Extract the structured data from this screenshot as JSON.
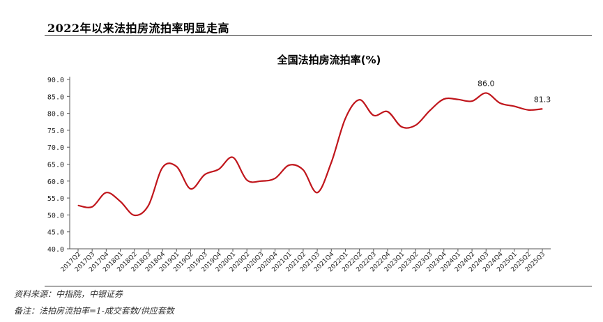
{
  "header": {
    "title": "2022年以来法拍房流拍率明显走高"
  },
  "footer": {
    "source": "资料来源：中指院，中银证券",
    "note": "备注：法拍房流拍率=1-成交套数/供应套数"
  },
  "chart_data": {
    "type": "line",
    "title": "全国法拍房流拍率(%)",
    "xlabel": "",
    "ylabel": "",
    "ylim": [
      40,
      90
    ],
    "yticks": [
      "40.0",
      "45.0",
      "50.0",
      "55.0",
      "60.0",
      "65.0",
      "70.0",
      "75.0",
      "80.0",
      "85.0",
      "90.0"
    ],
    "line_color": "#c0161c",
    "categories": [
      "2017Q2",
      "2017Q3",
      "2017Q4",
      "2018Q1",
      "2018Q2",
      "2018Q3",
      "2018Q4",
      "2019Q1",
      "2019Q2",
      "2019Q3",
      "2019Q4",
      "2020Q1",
      "2020Q2",
      "2020Q3",
      "2020Q4",
      "2021Q1",
      "2021Q2",
      "2021Q3",
      "2021Q4",
      "2022Q1",
      "2022Q2",
      "2022Q3",
      "2022Q4",
      "2023Q1",
      "2023Q2",
      "2023Q3",
      "2023Q4",
      "2024Q1",
      "2024Q2",
      "2024Q3",
      "2024Q4",
      "2025Q1",
      "2025Q2",
      "2025Q3"
    ],
    "x_tick_labels": [
      "2017Q2",
      "2017Q3",
      "2017Q4",
      "2018Q1",
      "2018Q2",
      "2018Q3",
      "2018Q4",
      "2019Q1",
      "2019Q2",
      "2019Q3",
      "2019Q4",
      "2020Q1",
      "2020Q2",
      "2020Q3",
      "2020Q4",
      "2021Q1",
      "2021Q2",
      "2021Q3",
      "2021Q4",
      "2022Q1",
      "2022Q2",
      "2022Q3",
      "2022Q4",
      "2023Q1",
      "2023Q2",
      "2023Q3",
      "2023Q4",
      "2024Q1",
      "2024Q2",
      "2024Q3",
      "2024Q4",
      "2025Q1",
      "2025Q2",
      "2025Q3"
    ],
    "values": [
      52.8,
      52.4,
      56.6,
      54.0,
      49.9,
      52.8,
      64.0,
      64.3,
      57.7,
      61.9,
      63.5,
      67.0,
      60.3,
      60.0,
      60.8,
      64.7,
      63.3,
      56.6,
      65.5,
      78.5,
      84.0,
      79.4,
      80.5,
      76.0,
      76.5,
      80.8,
      84.2,
      84.1,
      83.6,
      86.0,
      83.0,
      82.1,
      81.0,
      81.3
    ],
    "annotations": [
      {
        "category": "2024Q3",
        "value": 86.0,
        "label": "86.0"
      },
      {
        "category": "2025Q3",
        "value": 81.3,
        "label": "81.3"
      }
    ],
    "grid": false,
    "legend": "none"
  }
}
